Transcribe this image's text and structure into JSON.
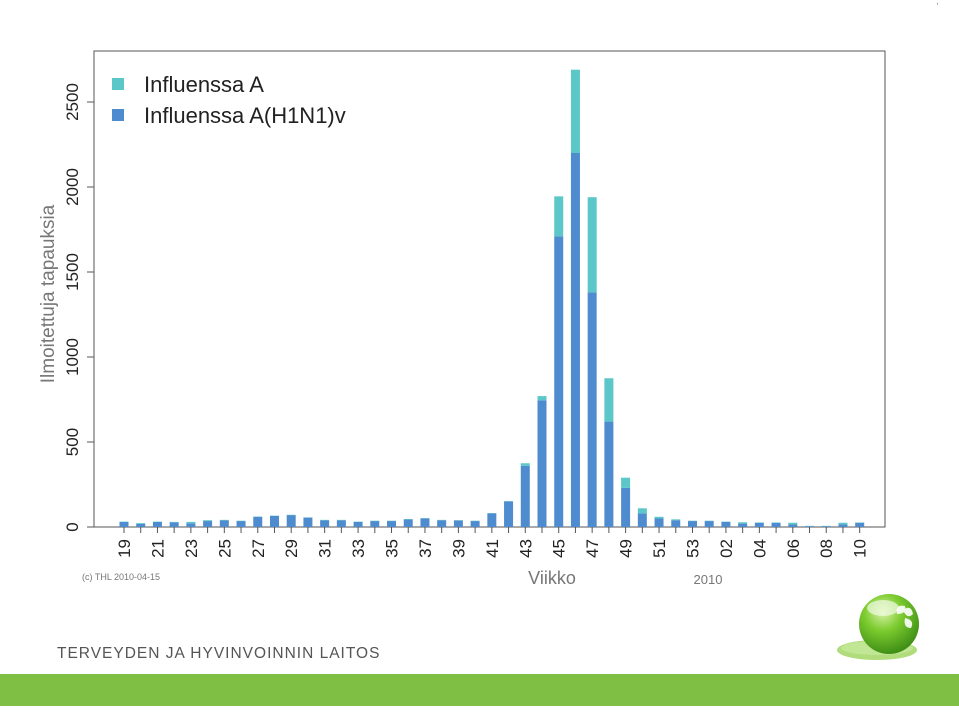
{
  "colors": {
    "influenza_a": "#5bc7c8",
    "h1n1": "#4f8ccf",
    "axis_text": "#555555",
    "brand_green": "#7fbf43"
  },
  "chart_data": {
    "type": "bar",
    "stacked": true,
    "ylabel": "Ilmoitettuja tapauksia",
    "xlabel": "Viikko",
    "x_sublabel": "2010",
    "copyright": "(c) THL  2010-04-15",
    "ylim": [
      0,
      2750
    ],
    "yticks": [
      0,
      500,
      1000,
      1500,
      2000,
      2500
    ],
    "legend_position": "top-left",
    "grid": false,
    "tick_labels": [
      "19",
      "21",
      "23",
      "25",
      "27",
      "29",
      "31",
      "33",
      "35",
      "37",
      "39",
      "41",
      "43",
      "45",
      "47",
      "49",
      "51",
      "53",
      "02",
      "04",
      "06",
      "08",
      "10"
    ],
    "categories": [
      "19",
      "20",
      "21",
      "22",
      "23",
      "24",
      "25",
      "26",
      "27",
      "28",
      "29",
      "30",
      "31",
      "32",
      "33",
      "34",
      "35",
      "36",
      "37",
      "38",
      "39",
      "40",
      "41",
      "42",
      "43",
      "44",
      "45",
      "46",
      "47",
      "48",
      "49",
      "50",
      "51",
      "52",
      "53",
      "01",
      "02",
      "03",
      "04",
      "05",
      "06",
      "07",
      "08",
      "09",
      "10"
    ],
    "series": [
      {
        "name": "Influenssa A(H1N1)v",
        "values": [
          30,
          18,
          30,
          28,
          22,
          35,
          40,
          35,
          60,
          65,
          70,
          55,
          40,
          40,
          30,
          35,
          35,
          45,
          50,
          40,
          38,
          35,
          80,
          150,
          360,
          745,
          1710,
          2200,
          1380,
          620,
          230,
          80,
          50,
          40,
          35,
          35,
          30,
          20,
          25,
          25,
          15,
          5,
          5,
          15,
          25
        ]
      },
      {
        "name": "Influenssa A",
        "values": [
          2,
          5,
          2,
          2,
          8,
          5,
          2,
          2,
          2,
          2,
          2,
          2,
          2,
          2,
          2,
          2,
          2,
          2,
          2,
          2,
          2,
          2,
          2,
          2,
          15,
          25,
          235,
          490,
          560,
          255,
          60,
          30,
          10,
          5,
          2,
          2,
          2,
          8,
          2,
          2,
          10,
          2,
          2,
          10,
          2
        ]
      }
    ]
  },
  "footer": {
    "organization": "TERVEYDEN JA HYVINVOINNIN LAITOS"
  }
}
